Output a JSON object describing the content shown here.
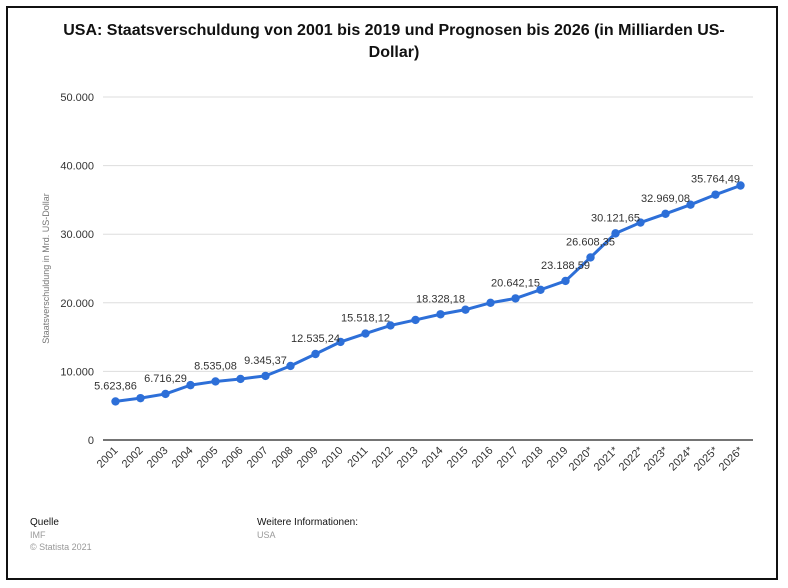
{
  "title": "USA: Staatsverschuldung von 2001 bis 2019 und Prognosen bis 2026 (in Milliarden US-Dollar)",
  "footer": {
    "source_label": "Quelle",
    "source_value": "IMF",
    "copyright": "© Statista 2021",
    "info_label": "Weitere Informationen:",
    "info_value": "USA"
  },
  "colors": {
    "line": "#2d6fd8",
    "grid": "#dddddd"
  },
  "chart_data": {
    "type": "line",
    "title": "USA: Staatsverschuldung von 2001 bis 2019 und Prognosen bis 2026 (in Milliarden US-Dollar)",
    "ylabel": "Staatsverschuldung in Mrd. US-Dollar",
    "xlabel": "",
    "ylim": [
      0,
      50000
    ],
    "yticks": [
      "0",
      "10.000",
      "20.000",
      "30.000",
      "40.000",
      "50.000"
    ],
    "ytick_values": [
      0,
      10000,
      20000,
      30000,
      40000,
      50000
    ],
    "grid": true,
    "categories": [
      "2001",
      "2002",
      "2003",
      "2004",
      "2005",
      "2006",
      "2007",
      "2008",
      "2009",
      "2010",
      "2011",
      "2012",
      "2013",
      "2014",
      "2015",
      "2016",
      "2017",
      "2018",
      "2019",
      "2020*",
      "2021*",
      "2022*",
      "2023*",
      "2024*",
      "2025*",
      "2026*"
    ],
    "values": [
      5623.86,
      6100,
      6716.29,
      8000,
      8535.08,
      8900,
      9345.37,
      10800,
      12535.24,
      14300,
      15518.12,
      16700,
      17500,
      18328.18,
      19000,
      20000,
      20642.15,
      21900,
      23188.59,
      26608.35,
      30121.65,
      31700,
      32969.08,
      34300,
      35764.49,
      37100
    ],
    "data_labels": [
      {
        "index": 0,
        "text": "5.623,86"
      },
      {
        "index": 2,
        "text": "6.716,29"
      },
      {
        "index": 4,
        "text": "8.535,08"
      },
      {
        "index": 6,
        "text": "9.345,37"
      },
      {
        "index": 8,
        "text": "12.535,24"
      },
      {
        "index": 10,
        "text": "15.518,12"
      },
      {
        "index": 13,
        "text": "18.328,18"
      },
      {
        "index": 16,
        "text": "20.642,15"
      },
      {
        "index": 18,
        "text": "23.188,59"
      },
      {
        "index": 19,
        "text": "26.608,35"
      },
      {
        "index": 20,
        "text": "30.121,65"
      },
      {
        "index": 22,
        "text": "32.969,08"
      },
      {
        "index": 24,
        "text": "35.764,49"
      }
    ]
  }
}
